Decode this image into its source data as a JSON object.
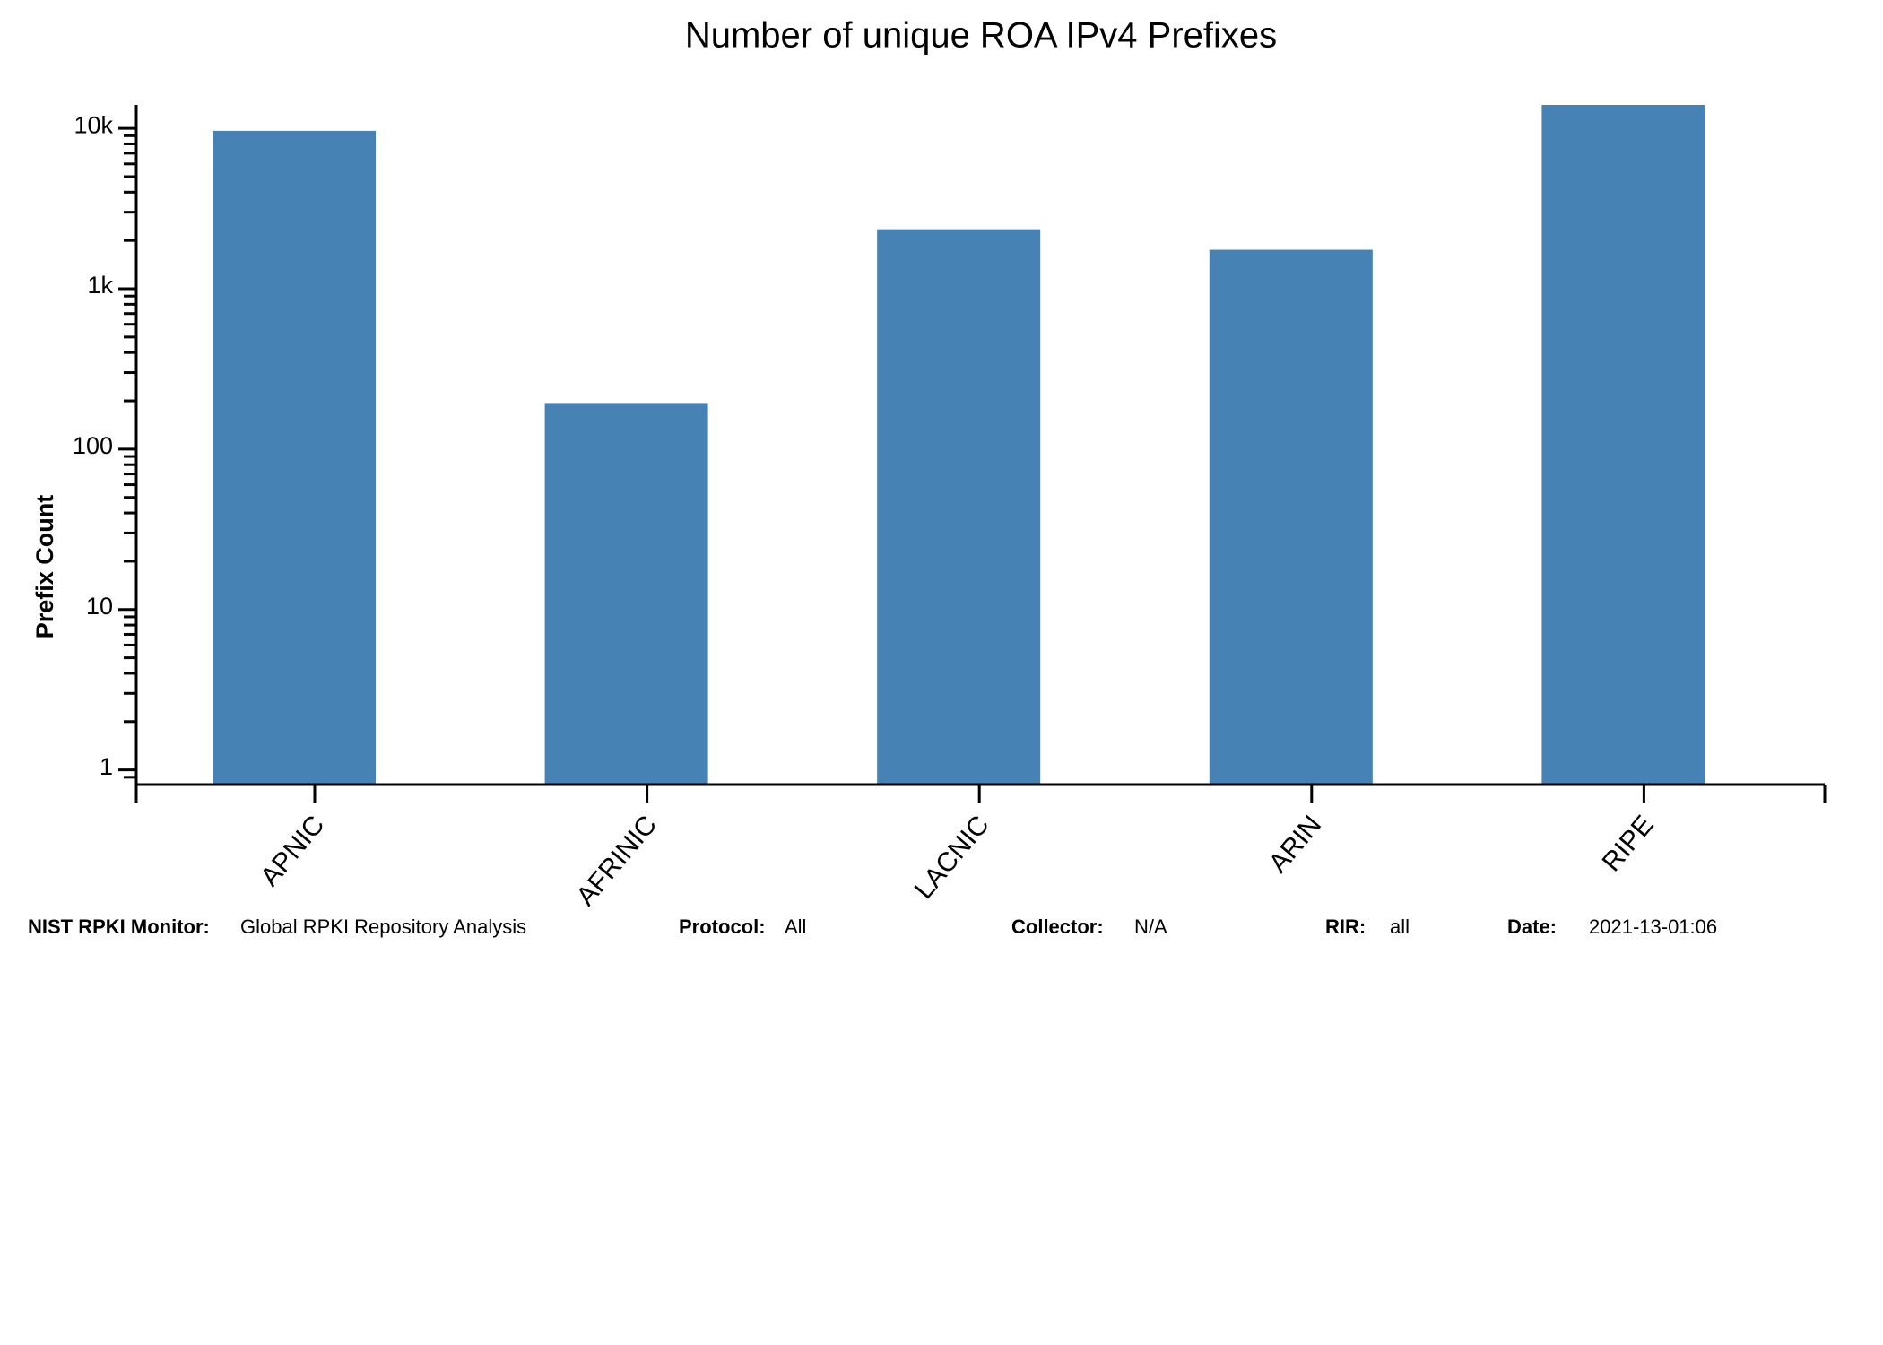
{
  "chart_data": {
    "type": "bar",
    "title": "Number of unique ROA IPv4 Prefixes",
    "y_label": "Prefix Count",
    "categories": [
      "APNIC",
      "AFRINIC",
      "LACNIC",
      "ARIN",
      "RIPE"
    ],
    "values": [
      9650,
      194,
      2350,
      1750,
      14000
    ],
    "color": "#4682b4",
    "log_scale": true,
    "ylim": [
      0.81,
      14000
    ],
    "yticks": [
      1,
      10,
      100,
      {
        "value": 1000,
        "label": "1k"
      },
      {
        "value": 10000,
        "label": "10k"
      }
    ]
  },
  "footer": [
    {
      "label": "NIST RPKI Monitor:",
      "value": "Global RPKI Repository Analysis"
    },
    {
      "label": "Protocol:",
      "value": "All"
    },
    {
      "label": "Collector:",
      "value": "N/A"
    },
    {
      "label": "RIR:",
      "value": "all"
    },
    {
      "label": "Date:",
      "value": "2021-13-01:06"
    }
  ]
}
